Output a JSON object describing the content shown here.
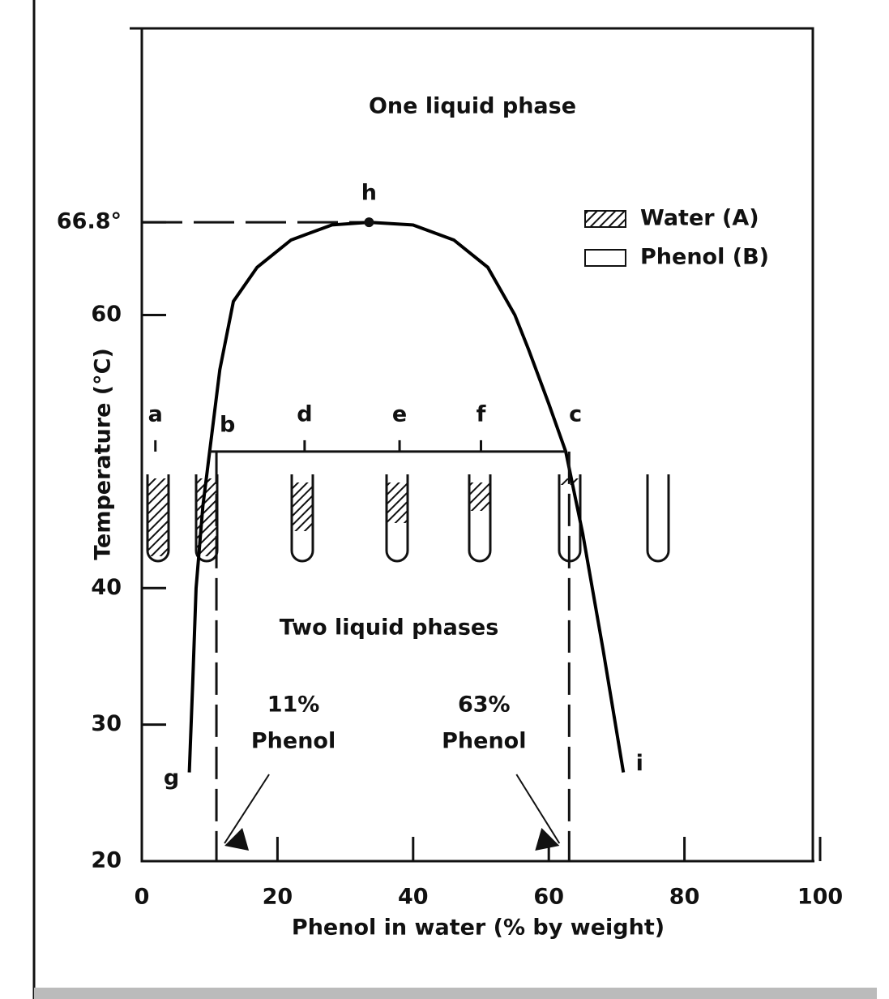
{
  "chart_data": {
    "type": "line",
    "x_label": "Phenol in water (% by weight)",
    "y_label": "Temperature (°C)",
    "x": [
      7,
      7.5,
      8,
      9,
      10,
      11.5,
      13.5,
      17,
      22,
      28,
      33.5,
      40,
      46,
      51,
      55,
      57,
      60,
      62.5,
      65,
      68,
      71
    ],
    "values": [
      26.5,
      33,
      40,
      46,
      50,
      56,
      61,
      63.5,
      65.5,
      66.6,
      66.8,
      66.6,
      65.5,
      63.5,
      60,
      57.5,
      53.5,
      50,
      44,
      35.5,
      26.5
    ],
    "point_labels": [
      "g",
      null,
      null,
      null,
      "b",
      null,
      null,
      null,
      null,
      null,
      "h",
      null,
      null,
      null,
      null,
      null,
      null,
      "c",
      null,
      null,
      "i"
    ],
    "color": "#000000",
    "xlim": [
      0,
      100
    ],
    "ylim": [
      20,
      81
    ],
    "xticks": [
      0,
      20,
      40,
      60,
      80,
      100
    ],
    "yticks": [
      20,
      30,
      40,
      60,
      {
        "value": 66.8,
        "label": "66.8°"
      }
    ],
    "marker_lines": [
      {
        "value": 11,
        "label": "11%"
      },
      {
        "value": 63,
        "label": "63%"
      }
    ],
    "marker_line_caption": "Phenol",
    "tube_labels": [
      "a",
      "d",
      "e",
      "f"
    ],
    "region_labels": [
      "One liquid phase",
      "Two liquid phases"
    ],
    "legend": [
      "Water (A)",
      "Phenol (B)"
    ]
  }
}
